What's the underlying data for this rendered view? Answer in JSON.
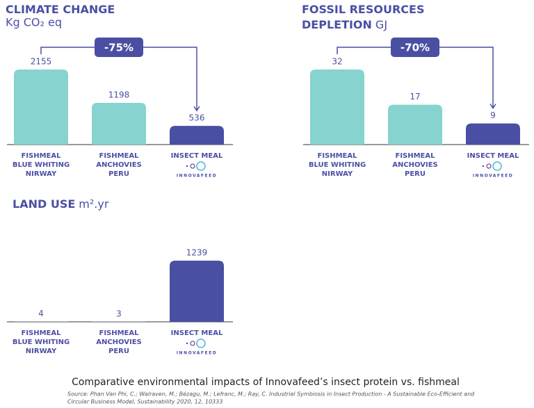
{
  "chart_data": [
    {
      "type": "bar",
      "title": [
        "CLIMATE CHANGE"
      ],
      "unit": "Kg CO₂ eq",
      "categories": [
        [
          "FISHMEAL",
          "BLUE WHITING",
          "NIRWAY"
        ],
        [
          "FISHMEAL",
          "ANCHOVIES",
          "PERU"
        ],
        [
          "INSECT MEAL"
        ]
      ],
      "logo_text": "INNOVAFEED",
      "values": [
        2155,
        1198,
        536
      ],
      "colors": [
        "#86d3d0",
        "#86d3d0",
        "#4a4fa3"
      ],
      "annotation": "-75%"
    },
    {
      "type": "bar",
      "title": [
        "FOSSIL RESOURCES",
        "DEPLETION"
      ],
      "unit": "GJ",
      "categories": [
        [
          "FISHMEAL",
          "BLUE WHITING",
          "NIRWAY"
        ],
        [
          "FISHMEAL",
          "ANCHOVIES",
          "PERU"
        ],
        [
          "INSECT MEAL"
        ]
      ],
      "logo_text": "INNOVAFEED",
      "values": [
        32,
        17,
        9
      ],
      "colors": [
        "#86d3d0",
        "#86d3d0",
        "#4a4fa3"
      ],
      "annotation": "-70%"
    },
    {
      "type": "bar",
      "title": [
        "LAND USE"
      ],
      "unit": "m².yr",
      "categories": [
        [
          "FISHMEAL",
          "BLUE WHITING",
          "NIRWAY"
        ],
        [
          "FISHMEAL",
          "ANCHOVIES",
          "PERU"
        ],
        [
          "INSECT MEAL"
        ]
      ],
      "logo_text": "INNOVAFEED",
      "values": [
        4,
        3,
        1239
      ],
      "colors": [
        "#86d3d0",
        "#86d3d0",
        "#4a4fa3"
      ]
    }
  ],
  "caption": "Comparative environmental impacts of Innovafeed’s insect  protein vs. fishmeal",
  "source": [
    "Source: Phan Van Phi, C.; Walraven, M.; Bézagu, M.; Lefranc, M.; Ray, C. Industrial Symbiosis in Insect Production - A Sustainable Eco-Efficient and",
    "Circular Business Model, Sustainability 2020, 12, 10333"
  ]
}
